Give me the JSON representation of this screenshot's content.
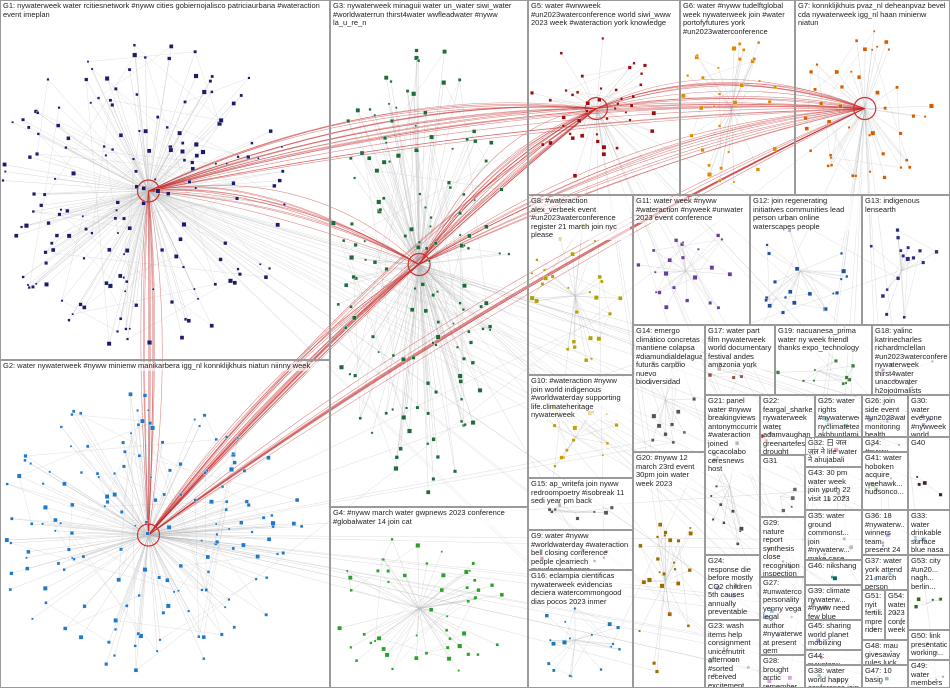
{
  "groups": [
    {
      "label": "G1: nywaterweek water rcitiesnetwork #nyww cities gobiernojalisco patriciaurbana #wateraction event imeplan"
    },
    {
      "label": "G2: water nywaterweek #nyww minienw manikarbera igg_nl konnklijkhuis niatun niinny week"
    },
    {
      "label": "G3: nywaterweek minaguii water un_water siwi_water #worldwaterrun thirst4water wwfleadwater #nyww la_u_re_n"
    },
    {
      "label": "G4: #nyww march water gwpnews 2023 conference #globalwater 14 join cat"
    },
    {
      "label": "G5: water #wrwweek #un2023waterconference world siwi_www 2023 week #wateraction york knowledge"
    },
    {
      "label": "G6: water #nyww tudelftglobal week nywaterweek join #water portofyfutures york #un2023waterconference"
    },
    {
      "label": "G7: konnklijkhuis pvaz_nl deheanpvaz bevel cda nywaterweek igg_nl haan minienw niatun"
    },
    {
      "label": "G8: #wateraction alex_verbeek event #un2023waterconference register 21 march join nyc please"
    },
    {
      "label": "G11: water week #nyww #wateraction #nyweek #unwater 2023 event conference"
    },
    {
      "label": "G12: join regenerating initiatives communities lead person urban online waterscapes people"
    },
    {
      "label": "G13: indigenous lensearth"
    },
    {
      "label": "G14: emergo climático concretas mantiene colapsa #diamundialdelagua futuras cambio nuevo biodiversidad"
    },
    {
      "label": "G17: water part film nywaterweek world documentary festival andes amazonia york"
    },
    {
      "label": "G19: nacuanesa_prima water ny week friendl thanks expo_technology"
    },
    {
      "label": "G18: yalinc katrinecharles richardmclellan #un2023waterconference nywaterweek thirst4water unaccowater h2ojournalists human_water"
    },
    {
      "label": "G10: #wateraction #nyww join world indigenous #worldwaterday supporting life.climateheritage nywaterweek"
    },
    {
      "label": "G15: ap_writefa join nyww redroompoetry #isobreak 11 sedi year pm back"
    },
    {
      "label": "G9: water #nyww #worldwaterday #wateraction bell closing conference people clearriech maxdeqexchange"
    },
    {
      "label": "G16: eclampia cientificas nywaterweek evidencias deciera watercommongood dias pocos 2023 inmer"
    },
    {
      "label": "G20: #nyww 12 march 23rd event 30pm join water week 2023"
    },
    {
      "label": "G21: panel water #nyww breakingviews antonymccurrie #wateraction joined cocacolabo ceresnews host"
    },
    {
      "label": "G24: response die before mostly CO2 children 5th causes annually preventable"
    },
    {
      "label": "G23: wash items help consignment unicefnutrit afternoon #sorted received excitement caforni_uganda"
    },
    {
      "label": "G22: feargal_sharkey nywaterweek water adamvaughan_uk greenartefes drought management rivers wre organise"
    },
    {
      "label": "G31"
    },
    {
      "label": "G29: nature report synthesis close recognition inspection demonstrates clear..."
    },
    {
      "label": "G27: #unwaterconfe... personality yenny vega legal author #nywaterweek at present gem"
    },
    {
      "label": "G28: brought arctic remember melting glacier rainwilson #cop28 meltwater..."
    },
    {
      "label": "G25: water rights #nywaterweek nyclimateteach akhhuntlamight weekly #nyclimateteach human solutions related ..."
    },
    {
      "label": "G32: 日 जल जल ने life water ने anujabali"
    },
    {
      "label": "G43: 30 pm water week join youth 22 visit 11 2023"
    },
    {
      "label": "G35: water ground commonst... join #nywaterw... make case..."
    },
    {
      "label": "G46: nikshang"
    },
    {
      "label": "G39: climate nywaterw... #nyww need few blue floods..."
    },
    {
      "label": "G45: sharing world planet mobilizing thank positively..."
    },
    {
      "label": "G44: nywaterw..."
    },
    {
      "label": "G38: water world happy conference join during invited #nyww..."
    },
    {
      "label": "G26: join side event #un2023water monitoring health surveillance public wastewater"
    },
    {
      "label": "G34: #nyww"
    },
    {
      "label": "G41: water hoboken acquire weehawk... hudsonco..."
    },
    {
      "label": "G36: 18 #nywaterw... winners team present 24 anyone..."
    },
    {
      "label": "G37: water york attend 21 march person nywaterw..."
    },
    {
      "label": "G51: nyit fertiliz mpre ridersh..."
    },
    {
      "label": "G54: water 2023 confer... week..."
    },
    {
      "label": "G48: mau givesaway rules luck..."
    },
    {
      "label": "G47: 10 basin"
    },
    {
      "label": "G30: water everyone #nywweek world bridge_theiga take life need effects action"
    },
    {
      "label": "G40"
    },
    {
      "label": "G33: water drinkable surface blue nasa earth useful shines..."
    },
    {
      "label": "G53: city #un20... nagh... berlin..."
    },
    {
      "label": "G50: link presentatio... working..."
    },
    {
      "label": "G49: water members first years 45 occurred..."
    }
  ]
}
